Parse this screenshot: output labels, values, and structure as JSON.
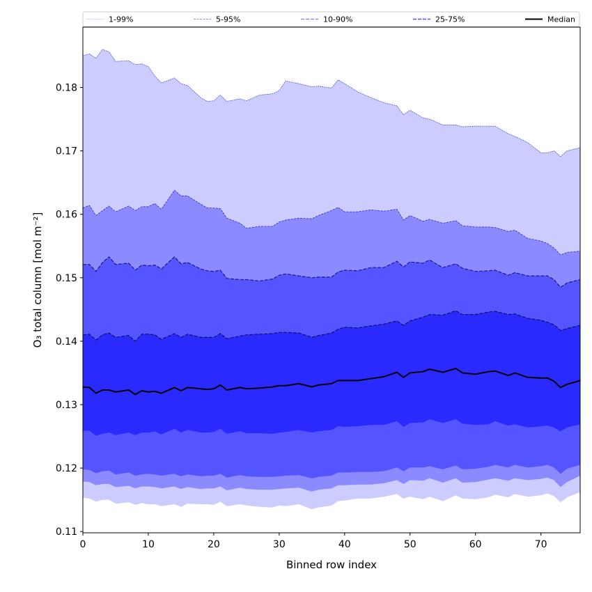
{
  "chart_data": {
    "type": "area",
    "title": "",
    "xlabel": "Binned row index",
    "ylabel": "O₃ total column [mol m⁻²]",
    "xlim": [
      0,
      76
    ],
    "ylim": [
      0.1098,
      0.1895
    ],
    "xticks": [
      0,
      10,
      20,
      30,
      40,
      50,
      60,
      70
    ],
    "xtick_labels": [
      "0",
      "10",
      "20",
      "30",
      "40",
      "50",
      "60",
      "70"
    ],
    "yticks": [
      0.11,
      0.12,
      0.13,
      0.14,
      0.15,
      0.16,
      0.17,
      0.18
    ],
    "ytick_labels": [
      "0.11",
      "0.12",
      "0.13",
      "0.14",
      "0.15",
      "0.16",
      "0.17",
      "0.18"
    ],
    "grid": false,
    "legend_position": "top",
    "legend": [
      {
        "label": "1-99%",
        "color": "#ccccff",
        "style": "dashed"
      },
      {
        "label": "5-95%",
        "color": "#8b8bff",
        "style": "dashed"
      },
      {
        "label": "10-90%",
        "color": "#5555ff",
        "style": "dashed"
      },
      {
        "label": "25-75%",
        "color": "#2a2aff",
        "style": "dashed"
      },
      {
        "label": "Median",
        "color": "#000000",
        "style": "solid"
      }
    ],
    "band_colors": {
      "p1_p99": "#ccccff",
      "p5_p95": "#8b8bff",
      "p10_p90": "#5555ff",
      "p25_p75": "#2a2aff"
    },
    "x_key_points": [
      0,
      1,
      2,
      3,
      4,
      5,
      7,
      8,
      9,
      10,
      11,
      12,
      14,
      15,
      16,
      18,
      19,
      20,
      21,
      22,
      24,
      25,
      27,
      29,
      30,
      31,
      33,
      35,
      36,
      38,
      39,
      40,
      42,
      44,
      46,
      48,
      49,
      50,
      52,
      53,
      55,
      57,
      58,
      60,
      62,
      63,
      65,
      66,
      68,
      70,
      71,
      72,
      73,
      74,
      76
    ],
    "series": [
      {
        "name": "p99",
        "values": [
          0.185,
          0.1853,
          0.1846,
          0.186,
          0.1856,
          0.1841,
          0.1842,
          0.1836,
          0.1837,
          0.1833,
          0.1818,
          0.1807,
          0.1815,
          0.1806,
          0.1803,
          0.1784,
          0.1778,
          0.1779,
          0.1788,
          0.1778,
          0.1782,
          0.1779,
          0.1788,
          0.179,
          0.1795,
          0.181,
          0.1806,
          0.1801,
          0.1802,
          0.1799,
          0.1812,
          0.1806,
          0.1793,
          0.1784,
          0.1776,
          0.1771,
          0.1757,
          0.1764,
          0.1752,
          0.175,
          0.1741,
          0.1741,
          0.1738,
          0.1739,
          0.1739,
          0.1739,
          0.1727,
          0.1723,
          0.1713,
          0.1697,
          0.1697,
          0.17,
          0.1691,
          0.17,
          0.1705
        ]
      },
      {
        "name": "p95",
        "values": [
          0.161,
          0.1614,
          0.1598,
          0.1606,
          0.1613,
          0.1604,
          0.1613,
          0.1606,
          0.1612,
          0.1612,
          0.1617,
          0.1608,
          0.1638,
          0.1629,
          0.1629,
          0.1616,
          0.161,
          0.161,
          0.1609,
          0.1594,
          0.1586,
          0.1578,
          0.1581,
          0.1581,
          0.1588,
          0.1591,
          0.1594,
          0.1593,
          0.1598,
          0.1606,
          0.1611,
          0.1604,
          0.1604,
          0.1607,
          0.1605,
          0.1608,
          0.1591,
          0.1598,
          0.1589,
          0.1592,
          0.1586,
          0.159,
          0.1582,
          0.158,
          0.158,
          0.1579,
          0.1573,
          0.1575,
          0.1562,
          0.1558,
          0.1554,
          0.1547,
          0.1536,
          0.154,
          0.1542
        ]
      },
      {
        "name": "p90",
        "values": [
          0.1521,
          0.1521,
          0.151,
          0.1524,
          0.1533,
          0.1521,
          0.1523,
          0.1512,
          0.152,
          0.1519,
          0.152,
          0.1514,
          0.1533,
          0.1522,
          0.1524,
          0.1514,
          0.1511,
          0.151,
          0.1512,
          0.1499,
          0.1497,
          0.1497,
          0.1495,
          0.1498,
          0.1504,
          0.1506,
          0.1503,
          0.15,
          0.1501,
          0.1501,
          0.1509,
          0.1512,
          0.1511,
          0.1516,
          0.1516,
          0.1526,
          0.1517,
          0.1525,
          0.1523,
          0.1528,
          0.1516,
          0.1522,
          0.1515,
          0.151,
          0.1511,
          0.1512,
          0.1504,
          0.1508,
          0.1503,
          0.1503,
          0.1503,
          0.1497,
          0.1485,
          0.1492,
          0.1497
        ]
      },
      {
        "name": "p75",
        "values": [
          0.141,
          0.1411,
          0.1402,
          0.141,
          0.1413,
          0.1406,
          0.1409,
          0.14,
          0.1411,
          0.1411,
          0.141,
          0.1403,
          0.1412,
          0.1406,
          0.1411,
          0.1406,
          0.1406,
          0.1406,
          0.1412,
          0.1404,
          0.1408,
          0.141,
          0.1411,
          0.1412,
          0.1414,
          0.1414,
          0.1413,
          0.1406,
          0.1409,
          0.1413,
          0.1419,
          0.1422,
          0.1421,
          0.1424,
          0.1427,
          0.1432,
          0.1425,
          0.1432,
          0.1438,
          0.1442,
          0.1441,
          0.1448,
          0.1442,
          0.1442,
          0.1446,
          0.1447,
          0.1442,
          0.1443,
          0.1436,
          0.1433,
          0.143,
          0.1426,
          0.1417,
          0.142,
          0.1425
        ]
      },
      {
        "name": "median",
        "values": [
          0.1328,
          0.1327,
          0.1318,
          0.1323,
          0.1323,
          0.132,
          0.1323,
          0.1316,
          0.1322,
          0.132,
          0.1321,
          0.1318,
          0.1327,
          0.1322,
          0.1327,
          0.1325,
          0.1324,
          0.1325,
          0.1331,
          0.1323,
          0.1327,
          0.1325,
          0.1326,
          0.1328,
          0.133,
          0.133,
          0.1333,
          0.1328,
          0.1331,
          0.1333,
          0.1338,
          0.1338,
          0.1338,
          0.1341,
          0.1344,
          0.1351,
          0.1343,
          0.135,
          0.1352,
          0.1356,
          0.1351,
          0.1357,
          0.135,
          0.1348,
          0.1352,
          0.1353,
          0.1346,
          0.135,
          0.1343,
          0.1342,
          0.1342,
          0.1337,
          0.1327,
          0.1332,
          0.1338
        ]
      },
      {
        "name": "p25",
        "values": [
          0.1259,
          0.1259,
          0.1251,
          0.1254,
          0.1256,
          0.1252,
          0.1256,
          0.1252,
          0.1256,
          0.1256,
          0.1258,
          0.1253,
          0.1262,
          0.1256,
          0.126,
          0.1256,
          0.1256,
          0.1257,
          0.1262,
          0.1254,
          0.1258,
          0.1255,
          0.1255,
          0.1254,
          0.1256,
          0.1257,
          0.126,
          0.1256,
          0.1258,
          0.126,
          0.1266,
          0.1265,
          0.1266,
          0.1268,
          0.1268,
          0.1274,
          0.1265,
          0.1271,
          0.1272,
          0.1277,
          0.1271,
          0.1277,
          0.127,
          0.1268,
          0.1269,
          0.1274,
          0.1267,
          0.1269,
          0.1264,
          0.1266,
          0.1267,
          0.1264,
          0.1258,
          0.1264,
          0.1269
        ]
      },
      {
        "name": "p10",
        "values": [
          0.1198,
          0.1197,
          0.1192,
          0.1195,
          0.1196,
          0.119,
          0.1193,
          0.1188,
          0.119,
          0.1191,
          0.119,
          0.1188,
          0.1191,
          0.1187,
          0.119,
          0.1187,
          0.1188,
          0.1188,
          0.1191,
          0.1185,
          0.1189,
          0.1187,
          0.1186,
          0.1186,
          0.1187,
          0.1188,
          0.1189,
          0.1184,
          0.1186,
          0.1188,
          0.1193,
          0.1193,
          0.1194,
          0.1194,
          0.1195,
          0.1201,
          0.1195,
          0.1201,
          0.1201,
          0.1203,
          0.1198,
          0.1204,
          0.1198,
          0.1199,
          0.1202,
          0.1205,
          0.1201,
          0.1205,
          0.1201,
          0.1203,
          0.1205,
          0.1201,
          0.1191,
          0.1199,
          0.1205
        ]
      },
      {
        "name": "p5",
        "values": [
          0.1179,
          0.1178,
          0.1173,
          0.1175,
          0.1175,
          0.117,
          0.1172,
          0.1168,
          0.1171,
          0.1171,
          0.117,
          0.1168,
          0.1171,
          0.1167,
          0.117,
          0.1167,
          0.1168,
          0.1168,
          0.1171,
          0.1165,
          0.1169,
          0.1167,
          0.1166,
          0.1166,
          0.1167,
          0.1168,
          0.1169,
          0.1163,
          0.1166,
          0.1168,
          0.1173,
          0.1173,
          0.1174,
          0.1174,
          0.1176,
          0.1181,
          0.1175,
          0.1181,
          0.118,
          0.1184,
          0.1177,
          0.1184,
          0.1177,
          0.1178,
          0.1182,
          0.1184,
          0.118,
          0.1184,
          0.1181,
          0.1183,
          0.1185,
          0.1181,
          0.117,
          0.1178,
          0.1188
        ]
      },
      {
        "name": "p1",
        "values": [
          0.1153,
          0.1152,
          0.1147,
          0.115,
          0.115,
          0.1144,
          0.1146,
          0.1142,
          0.1145,
          0.1143,
          0.1143,
          0.114,
          0.1143,
          0.1139,
          0.1144,
          0.1143,
          0.1143,
          0.1142,
          0.1147,
          0.114,
          0.1143,
          0.1141,
          0.1139,
          0.1138,
          0.1141,
          0.114,
          0.1143,
          0.1135,
          0.1138,
          0.1141,
          0.1148,
          0.1149,
          0.1152,
          0.1152,
          0.1155,
          0.1159,
          0.1152,
          0.1155,
          0.1151,
          0.1155,
          0.1148,
          0.1157,
          0.1152,
          0.1151,
          0.1154,
          0.1158,
          0.1154,
          0.1159,
          0.1155,
          0.1157,
          0.116,
          0.1156,
          0.1146,
          0.1154,
          0.1162
        ]
      }
    ]
  }
}
